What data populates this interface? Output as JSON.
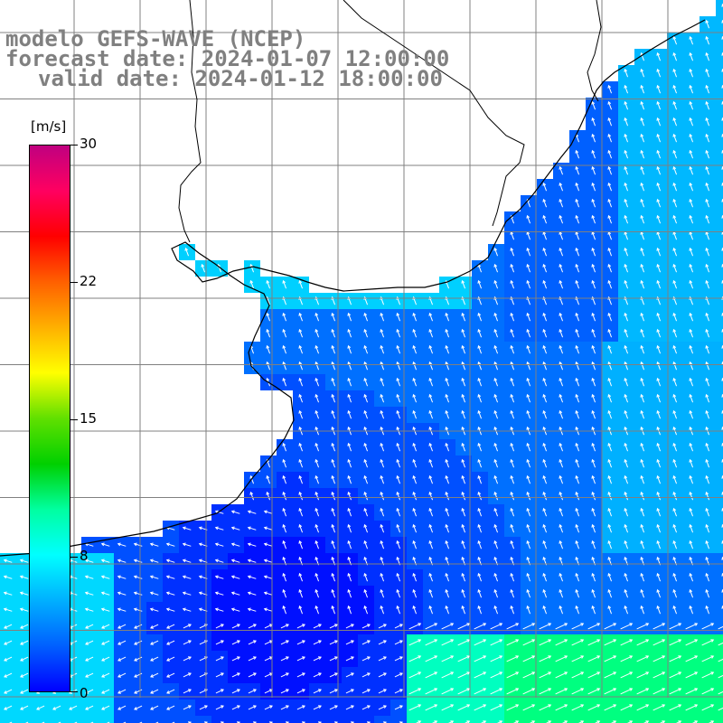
{
  "title": {
    "line1": "modelo GEFS-WAVE (NCEP)",
    "line2": "forecast date: 2024-01-07 12:00:00",
    "line3": "valid date: 2024-01-12 18:00:00"
  },
  "colorbar": {
    "unit": "[m/s]",
    "ticks": [
      "30",
      "22",
      "15",
      "8",
      "0"
    ],
    "tick_values": [
      30,
      22,
      15,
      8,
      0
    ],
    "min": 0,
    "max": 30,
    "stops": [
      "#0000ff",
      "#0060ff",
      "#00b0ff",
      "#00ffff",
      "#00ffa0",
      "#00d000",
      "#60e000",
      "#ffff00",
      "#ffb000",
      "#ff6000",
      "#ff0000",
      "#ff0060",
      "#c00080"
    ]
  },
  "map": {
    "ocean_colors": {
      "calm": "#0000ff",
      "mid": "#0080ff",
      "moderate": "#00e0ff"
    },
    "land_color": "#ffffff",
    "grid_color": "#808080",
    "coastline_color": "#000000",
    "arrow_color": "#ffffff"
  }
}
